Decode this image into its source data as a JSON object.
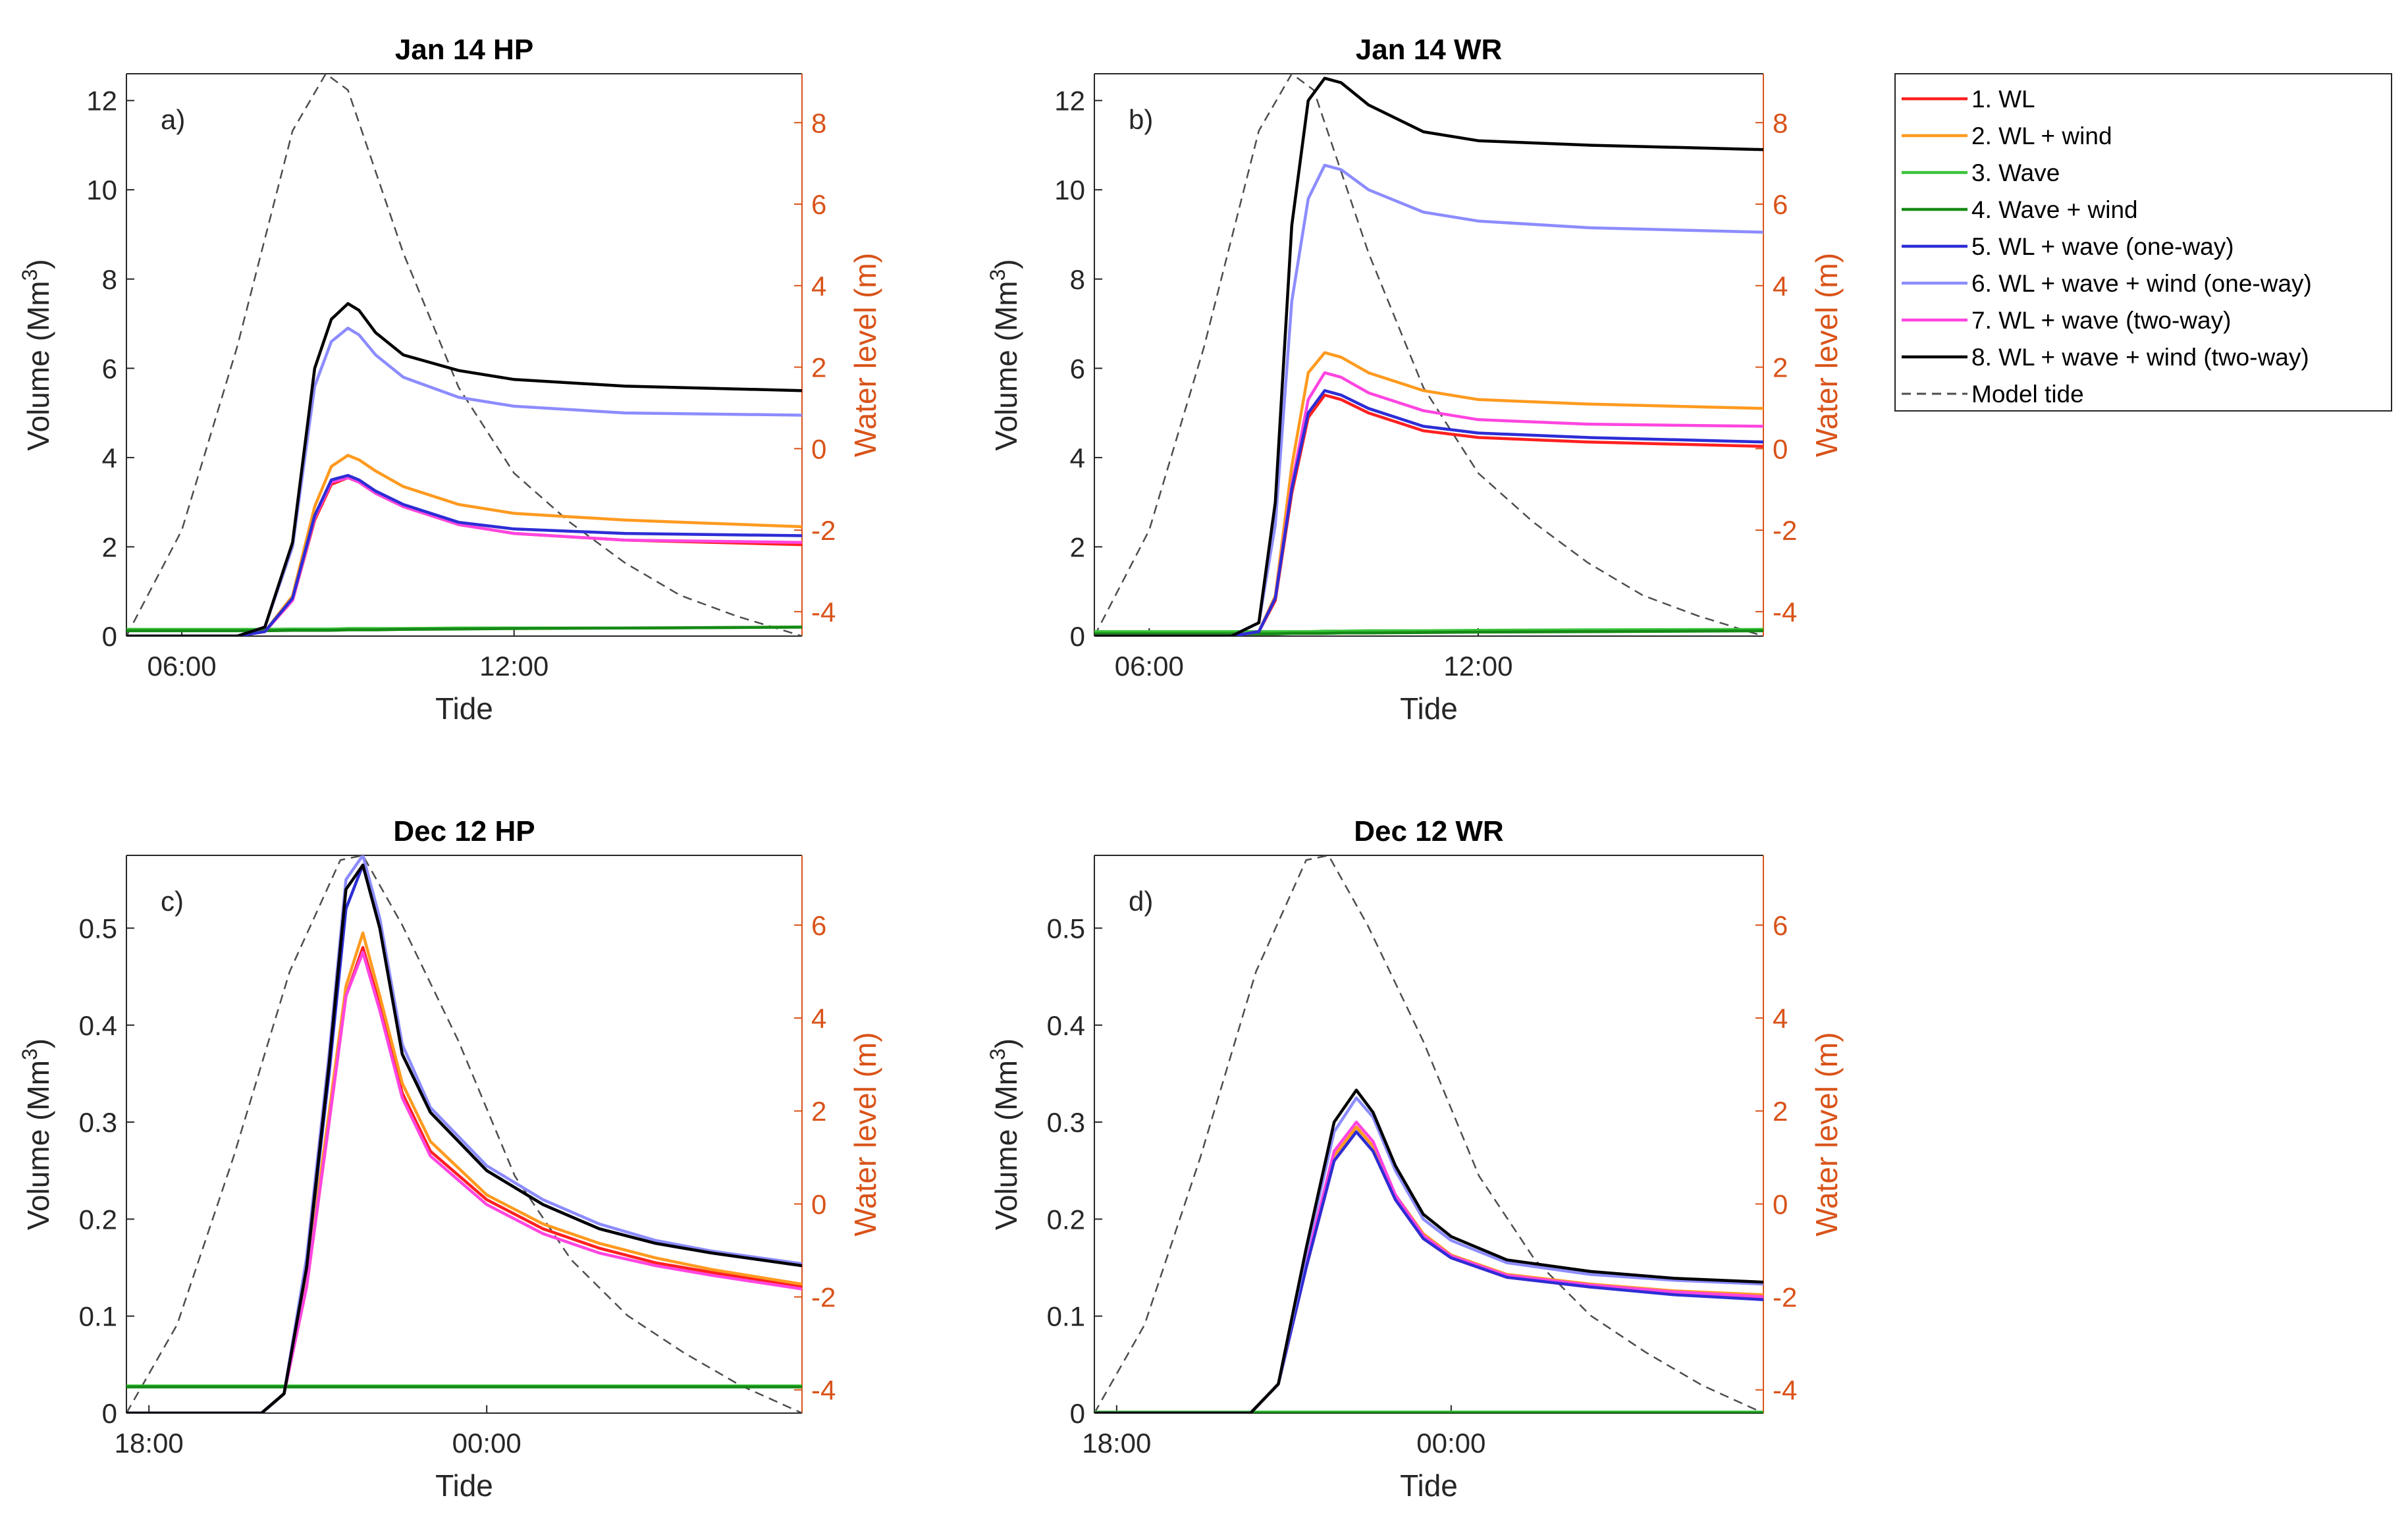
{
  "chart_data": [
    {
      "type": "line",
      "panel_label": "a)",
      "title": "Jan 14 HP",
      "xlabel": "Tide",
      "ylabel": "Volume (Mm",
      "ylabel_sup": "3",
      "ylabel_close": ")",
      "y2label": "Water level (m)",
      "x_ticks": [
        {
          "value": 6,
          "label": "06:00"
        },
        {
          "value": 12,
          "label": "12:00"
        }
      ],
      "ylim": [
        0,
        12.6
      ],
      "yticks": [
        0,
        2,
        4,
        6,
        8,
        10,
        12
      ],
      "y2lim": [
        -4.6,
        9.2
      ],
      "y2ticks": [
        -4,
        -2,
        0,
        2,
        4,
        6,
        8
      ],
      "xlim": [
        5.0,
        17.2
      ],
      "x": [
        5.0,
        7.0,
        7.5,
        8.0,
        8.4,
        8.7,
        9.0,
        9.2,
        9.5,
        10.0,
        11.0,
        12.0,
        14.0,
        17.2
      ],
      "tide": {
        "x": [
          5.0,
          6.0,
          7.0,
          8.0,
          8.6,
          9.0,
          10.0,
          11.0,
          12.0,
          13.0,
          14.0,
          15.0,
          16.0,
          17.2
        ],
        "y": [
          -4.6,
          -2.0,
          2.5,
          7.8,
          9.2,
          8.8,
          4.8,
          1.5,
          -0.6,
          -1.8,
          -2.8,
          -3.6,
          -4.1,
          -4.6
        ]
      },
      "series": [
        {
          "name": "1. WL",
          "values": [
            0.0,
            0.0,
            0.1,
            0.8,
            2.6,
            3.4,
            3.55,
            3.45,
            3.2,
            2.9,
            2.5,
            2.3,
            2.15,
            2.05
          ]
        },
        {
          "name": "2. WL + wind",
          "values": [
            0.0,
            0.0,
            0.1,
            0.9,
            2.9,
            3.8,
            4.05,
            3.95,
            3.7,
            3.35,
            2.95,
            2.75,
            2.6,
            2.45
          ]
        },
        {
          "name": "3. Wave",
          "values": [
            0.15,
            0.15,
            0.15,
            0.16,
            0.16,
            0.16,
            0.17,
            0.17,
            0.17,
            0.17,
            0.18,
            0.18,
            0.18,
            0.2
          ]
        },
        {
          "name": "4. Wave + wind",
          "values": [
            0.12,
            0.12,
            0.12,
            0.13,
            0.13,
            0.13,
            0.14,
            0.14,
            0.14,
            0.15,
            0.16,
            0.17,
            0.18,
            0.2
          ]
        },
        {
          "name": "5. WL + wave (one-way)",
          "values": [
            0.0,
            0.0,
            0.1,
            0.85,
            2.7,
            3.5,
            3.6,
            3.5,
            3.25,
            2.95,
            2.55,
            2.4,
            2.3,
            2.25
          ]
        },
        {
          "name": "6. WL + wave + wind (one-way)",
          "values": [
            0.0,
            0.0,
            0.2,
            2.0,
            5.6,
            6.6,
            6.9,
            6.75,
            6.3,
            5.8,
            5.35,
            5.15,
            5.0,
            4.95
          ]
        },
        {
          "name": "7. WL + wave (two-way)",
          "values": [
            0.0,
            0.0,
            0.1,
            0.8,
            2.65,
            3.45,
            3.55,
            3.45,
            3.2,
            2.9,
            2.5,
            2.3,
            2.15,
            2.1
          ]
        },
        {
          "name": "8. WL + wave + wind (two-way)",
          "values": [
            0.0,
            0.0,
            0.2,
            2.1,
            6.0,
            7.1,
            7.45,
            7.3,
            6.8,
            6.3,
            5.95,
            5.75,
            5.6,
            5.5
          ]
        }
      ]
    },
    {
      "type": "line",
      "panel_label": "b)",
      "title": "Jan 14 WR",
      "xlabel": "Tide",
      "ylabel": "Volume (Mm",
      "ylabel_sup": "3",
      "ylabel_close": ")",
      "y2label": "Water level (m)",
      "x_ticks": [
        {
          "value": 6,
          "label": "06:00"
        },
        {
          "value": 12,
          "label": "12:00"
        }
      ],
      "ylim": [
        0,
        12.6
      ],
      "yticks": [
        0,
        2,
        4,
        6,
        8,
        10,
        12
      ],
      "y2lim": [
        -4.6,
        9.2
      ],
      "y2ticks": [
        -4,
        -2,
        0,
        2,
        4,
        6,
        8
      ],
      "xlim": [
        5.0,
        17.2
      ],
      "x": [
        5.0,
        7.5,
        8.0,
        8.3,
        8.6,
        8.9,
        9.2,
        9.5,
        10.0,
        11.0,
        12.0,
        14.0,
        17.2
      ],
      "tide": {
        "x": [
          5.0,
          6.0,
          7.0,
          8.0,
          8.6,
          9.0,
          10.0,
          11.0,
          12.0,
          13.0,
          14.0,
          15.0,
          16.0,
          17.2
        ],
        "y": [
          -4.6,
          -2.0,
          2.5,
          7.8,
          9.2,
          8.8,
          4.8,
          1.5,
          -0.6,
          -1.8,
          -2.8,
          -3.6,
          -4.1,
          -4.6
        ]
      },
      "series": [
        {
          "name": "1. WL",
          "values": [
            0.0,
            0.0,
            0.1,
            0.8,
            3.2,
            4.9,
            5.4,
            5.3,
            5.0,
            4.6,
            4.45,
            4.35,
            4.25
          ]
        },
        {
          "name": "2. WL + wind",
          "values": [
            0.0,
            0.0,
            0.1,
            0.9,
            3.8,
            5.9,
            6.35,
            6.25,
            5.9,
            5.5,
            5.3,
            5.2,
            5.1
          ]
        },
        {
          "name": "3. Wave",
          "values": [
            0.1,
            0.1,
            0.1,
            0.1,
            0.1,
            0.1,
            0.11,
            0.11,
            0.12,
            0.12,
            0.13,
            0.14,
            0.15
          ]
        },
        {
          "name": "4. Wave + wind",
          "values": [
            0.05,
            0.05,
            0.05,
            0.05,
            0.06,
            0.06,
            0.06,
            0.07,
            0.07,
            0.08,
            0.09,
            0.1,
            0.12
          ]
        },
        {
          "name": "5. WL + wave (one-way)",
          "values": [
            0.0,
            0.0,
            0.1,
            0.85,
            3.3,
            5.0,
            5.5,
            5.4,
            5.1,
            4.7,
            4.55,
            4.45,
            4.35
          ]
        },
        {
          "name": "6. WL + wave + wind (one-way)",
          "values": [
            0.0,
            0.0,
            0.3,
            2.5,
            7.5,
            9.8,
            10.55,
            10.45,
            10.0,
            9.5,
            9.3,
            9.15,
            9.05
          ]
        },
        {
          "name": "7. WL + wave (two-way)",
          "values": [
            0.0,
            0.0,
            0.1,
            0.85,
            3.4,
            5.3,
            5.9,
            5.8,
            5.45,
            5.05,
            4.85,
            4.75,
            4.7
          ]
        },
        {
          "name": "8. WL + wave + wind (two-way)",
          "values": [
            0.0,
            0.0,
            0.3,
            3.0,
            9.2,
            12.0,
            12.5,
            12.4,
            11.9,
            11.3,
            11.1,
            11.0,
            10.9
          ]
        }
      ]
    },
    {
      "type": "line",
      "panel_label": "c)",
      "title": "Dec 12 HP",
      "xlabel": "Tide",
      "ylabel": "Volume (Mm",
      "ylabel_sup": "3",
      "ylabel_close": ")",
      "y2label": "Water level (m)",
      "x_ticks": [
        {
          "value": 18,
          "label": "18:00"
        },
        {
          "value": 24,
          "label": "00:00"
        }
      ],
      "ylim": [
        0,
        0.575
      ],
      "yticks": [
        0,
        0.1,
        0.2,
        0.3,
        0.4,
        0.5
      ],
      "y2lim": [
        -4.5,
        7.5
      ],
      "y2ticks": [
        -4,
        -2,
        0,
        2,
        4,
        6
      ],
      "xlim": [
        17.6,
        29.6
      ],
      "x": [
        17.6,
        20.0,
        20.4,
        20.8,
        21.2,
        21.5,
        21.8,
        22.1,
        22.5,
        23.0,
        24.0,
        25.0,
        26.0,
        27.0,
        28.0,
        29.6
      ],
      "tide": {
        "x": [
          17.6,
          18.5,
          19.5,
          20.5,
          21.4,
          21.8,
          22.5,
          23.5,
          24.5,
          25.5,
          26.5,
          27.5,
          28.5,
          29.6
        ],
        "y": [
          -4.5,
          -2.6,
          1.0,
          5.0,
          7.4,
          7.5,
          6.0,
          3.5,
          0.6,
          -1.2,
          -2.4,
          -3.2,
          -3.9,
          -4.5
        ]
      },
      "series": [
        {
          "name": "1. WL",
          "values": [
            0.0,
            0.0,
            0.02,
            0.13,
            0.3,
            0.43,
            0.48,
            0.42,
            0.33,
            0.27,
            0.22,
            0.19,
            0.17,
            0.155,
            0.145,
            0.13
          ]
        },
        {
          "name": "2. WL + wind",
          "values": [
            0.0,
            0.0,
            0.02,
            0.14,
            0.31,
            0.44,
            0.495,
            0.43,
            0.34,
            0.28,
            0.225,
            0.195,
            0.175,
            0.16,
            0.148,
            0.133
          ]
        },
        {
          "name": "3. Wave",
          "values": [
            0.028,
            0.028,
            0.028,
            0.028,
            0.028,
            0.028,
            0.028,
            0.028,
            0.028,
            0.028,
            0.028,
            0.028,
            0.028,
            0.028,
            0.028,
            0.028
          ]
        },
        {
          "name": "4. Wave + wind",
          "values": [
            0.027,
            0.027,
            0.027,
            0.027,
            0.027,
            0.027,
            0.027,
            0.027,
            0.027,
            0.027,
            0.027,
            0.027,
            0.027,
            0.027,
            0.027,
            0.027
          ]
        },
        {
          "name": "5. WL + wave (one-way)",
          "values": [
            0.0,
            0.0,
            0.02,
            0.15,
            0.35,
            0.52,
            0.565,
            0.5,
            0.37,
            0.31,
            0.25,
            0.215,
            0.19,
            0.175,
            0.165,
            0.152
          ]
        },
        {
          "name": "6. WL + wave + wind (one-way)",
          "values": [
            0.0,
            0.0,
            0.02,
            0.16,
            0.37,
            0.55,
            0.575,
            0.51,
            0.38,
            0.315,
            0.255,
            0.22,
            0.195,
            0.178,
            0.167,
            0.154
          ]
        },
        {
          "name": "7. WL + wave (two-way)",
          "values": [
            0.0,
            0.0,
            0.02,
            0.13,
            0.3,
            0.43,
            0.475,
            0.415,
            0.325,
            0.265,
            0.215,
            0.185,
            0.165,
            0.152,
            0.142,
            0.128
          ]
        },
        {
          "name": "8. WL + wave + wind (two-way)",
          "values": [
            0.0,
            0.0,
            0.02,
            0.15,
            0.36,
            0.54,
            0.565,
            0.5,
            0.37,
            0.31,
            0.25,
            0.215,
            0.19,
            0.175,
            0.165,
            0.152
          ]
        }
      ]
    },
    {
      "type": "line",
      "panel_label": "d)",
      "title": "Dec 12 WR",
      "xlabel": "Tide",
      "ylabel": "Volume (Mm",
      "ylabel_sup": "3",
      "ylabel_close": ")",
      "y2label": "Water level (m)",
      "x_ticks": [
        {
          "value": 18,
          "label": "18:00"
        },
        {
          "value": 24,
          "label": "00:00"
        }
      ],
      "ylim": [
        0,
        0.575
      ],
      "yticks": [
        0,
        0.1,
        0.2,
        0.3,
        0.4,
        0.5
      ],
      "y2lim": [
        -4.5,
        7.5
      ],
      "y2ticks": [
        -4,
        -2,
        0,
        2,
        4,
        6
      ],
      "xlim": [
        17.6,
        29.6
      ],
      "x": [
        17.6,
        20.4,
        20.9,
        21.4,
        21.9,
        22.3,
        22.6,
        23.0,
        23.5,
        24.0,
        25.0,
        26.5,
        28.0,
        29.6
      ],
      "tide": {
        "x": [
          17.6,
          18.5,
          19.5,
          20.5,
          21.4,
          21.8,
          22.5,
          23.5,
          24.5,
          25.5,
          26.5,
          27.5,
          28.5,
          29.6
        ],
        "y": [
          -4.5,
          -2.6,
          1.0,
          5.0,
          7.4,
          7.5,
          6.0,
          3.5,
          0.6,
          -1.2,
          -2.4,
          -3.2,
          -3.9,
          -4.5
        ]
      },
      "series": [
        {
          "name": "1. WL",
          "values": [
            0.0,
            0.0,
            0.03,
            0.15,
            0.26,
            0.29,
            0.27,
            0.22,
            0.18,
            0.16,
            0.14,
            0.13,
            0.123,
            0.118
          ]
        },
        {
          "name": "2. WL + wind",
          "values": [
            0.0,
            0.0,
            0.03,
            0.155,
            0.265,
            0.295,
            0.275,
            0.225,
            0.185,
            0.163,
            0.143,
            0.133,
            0.126,
            0.122
          ]
        },
        {
          "name": "3. Wave",
          "values": [
            0.001,
            0.001,
            0.001,
            0.001,
            0.001,
            0.001,
            0.001,
            0.001,
            0.001,
            0.001,
            0.001,
            0.001,
            0.001,
            0.001
          ]
        },
        {
          "name": "4. Wave + wind",
          "values": [
            0.0,
            0.0,
            0.0,
            0.0,
            0.0,
            0.0,
            0.0,
            0.0,
            0.0,
            0.0,
            0.0,
            0.0,
            0.0,
            0.0
          ]
        },
        {
          "name": "5. WL + wave (one-way)",
          "values": [
            0.0,
            0.0,
            0.03,
            0.15,
            0.26,
            0.29,
            0.27,
            0.22,
            0.18,
            0.16,
            0.14,
            0.13,
            0.122,
            0.117
          ]
        },
        {
          "name": "6. WL + wave + wind (one-way)",
          "values": [
            0.0,
            0.0,
            0.03,
            0.165,
            0.29,
            0.325,
            0.305,
            0.25,
            0.2,
            0.178,
            0.155,
            0.143,
            0.137,
            0.133
          ]
        },
        {
          "name": "7. WL + wave (two-way)",
          "values": [
            0.0,
            0.0,
            0.03,
            0.155,
            0.27,
            0.3,
            0.28,
            0.225,
            0.183,
            0.162,
            0.142,
            0.132,
            0.125,
            0.12
          ]
        },
        {
          "name": "8. WL + wave + wind (two-way)",
          "values": [
            0.0,
            0.0,
            0.03,
            0.17,
            0.3,
            0.333,
            0.31,
            0.255,
            0.205,
            0.182,
            0.158,
            0.146,
            0.139,
            0.135
          ]
        }
      ]
    }
  ],
  "legend": {
    "location": "right",
    "items": [
      {
        "label": "1. WL",
        "color": "#FF2020",
        "style": "solid"
      },
      {
        "label": "2. WL + wind",
        "color": "#FF9A1F",
        "style": "solid"
      },
      {
        "label": "3. Wave",
        "color": "#3AC43A",
        "style": "solid"
      },
      {
        "label": "4. Wave + wind",
        "color": "#168A16",
        "style": "solid"
      },
      {
        "label": "5. WL + wave (one-way)",
        "color": "#2D2DD6",
        "style": "solid"
      },
      {
        "label": "6. WL + wave + wind (one-way)",
        "color": "#8C8CFF",
        "style": "solid"
      },
      {
        "label": "7. WL + wave (two-way)",
        "color": "#FF45E0",
        "style": "solid"
      },
      {
        "label": "8. WL + wave + wind (two-way)",
        "color": "#000000",
        "style": "solid"
      },
      {
        "label": "Model tide",
        "color": "#4D4D4D",
        "style": "dashed"
      }
    ]
  },
  "colors": {
    "right_axis": "#D95319",
    "tide": "#4D4D4D",
    "axis": "#262626"
  }
}
